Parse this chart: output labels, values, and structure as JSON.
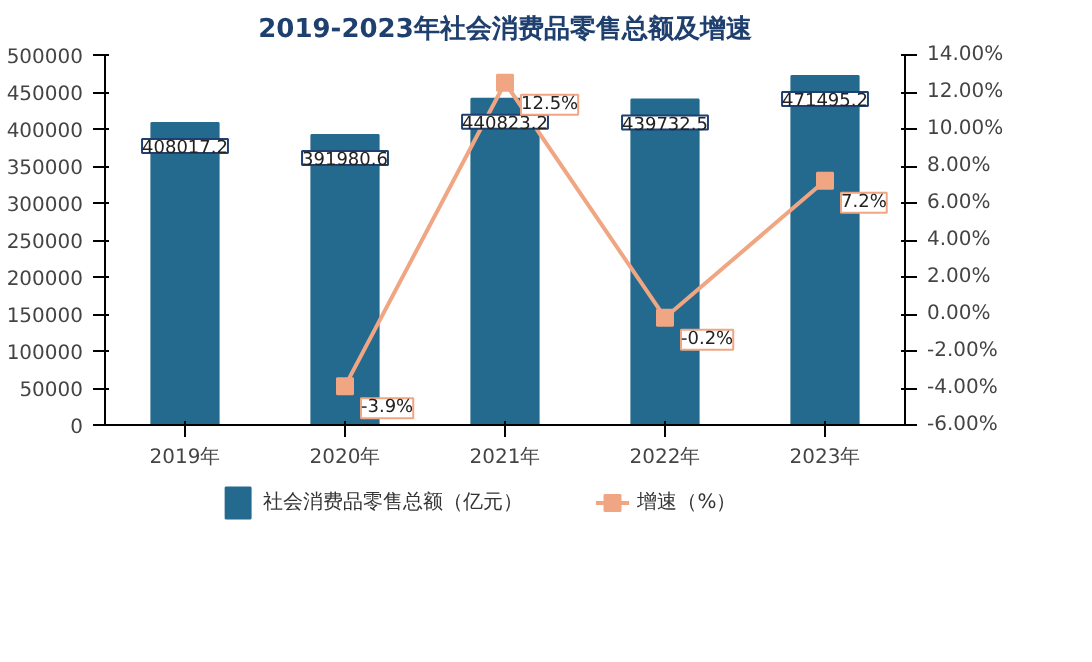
{
  "chart_data": {
    "type": "bar",
    "title": "2019-2023年社会消费品零售总额及增速",
    "categories": [
      "2019年",
      "2020年",
      "2021年",
      "2022年",
      "2023年"
    ],
    "series": [
      {
        "name": "社会消费品零售总额（亿元）",
        "color": "#236a8e",
        "values": [
          408017.2,
          391980.6,
          440823.2,
          439732.5,
          471495.2
        ],
        "data_labels": true
      },
      {
        "name": "增速（%）",
        "type": "line",
        "axis": "y2",
        "color": "#f0a683",
        "marker": "square",
        "values": [
          null,
          -3.9,
          12.5,
          -0.2,
          7.2
        ],
        "value_labels": [
          null,
          "-3.9%",
          "12.5%",
          "-0.2%",
          "7.2%"
        ]
      }
    ],
    "ylim": [
      0,
      500000
    ],
    "yticks": [
      0,
      50000,
      100000,
      150000,
      200000,
      250000,
      300000,
      350000,
      400000,
      450000,
      500000
    ],
    "y2lim": [
      -6,
      14
    ],
    "y2ticks": [
      {
        "value": -6,
        "label": "-6.00%"
      },
      {
        "value": -4,
        "label": "-4.00%"
      },
      {
        "value": -2,
        "label": "-2.00%"
      },
      {
        "value": 0,
        "label": "0.00%"
      },
      {
        "value": 2,
        "label": "2.00%"
      },
      {
        "value": 4,
        "label": "4.00%"
      },
      {
        "value": 6,
        "label": "6.00%"
      },
      {
        "value": 8,
        "label": "8.00%"
      },
      {
        "value": 10,
        "label": "10.00%"
      },
      {
        "value": 12,
        "label": "12.00%"
      },
      {
        "value": 14,
        "label": "14.00%"
      }
    ],
    "legend": "bottom"
  }
}
